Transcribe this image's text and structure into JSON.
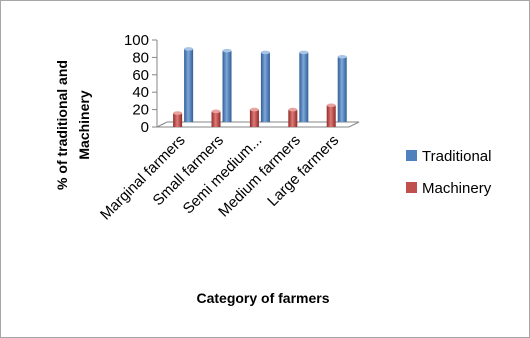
{
  "chart_data": {
    "type": "bar",
    "categories": [
      "Marginal farmers",
      "Small farmers",
      "Semi medium...",
      "Medium farmers",
      "Large farmers"
    ],
    "series": [
      {
        "name": "Traditional",
        "values": [
          84,
          82,
          80,
          80,
          75
        ],
        "color": "#4F81BD"
      },
      {
        "name": "Machinery",
        "values": [
          16,
          18,
          20,
          20,
          25
        ],
        "color": "#C0504D"
      }
    ],
    "xlabel": "Category of farmers",
    "ylabel_lines": [
      "% of traditional and",
      "Machinery"
    ],
    "ylim": [
      0,
      100
    ],
    "yticks": [
      0,
      20,
      40,
      60,
      80,
      100
    ],
    "legend_position": "right",
    "style": "3d-cylinder-bars"
  }
}
